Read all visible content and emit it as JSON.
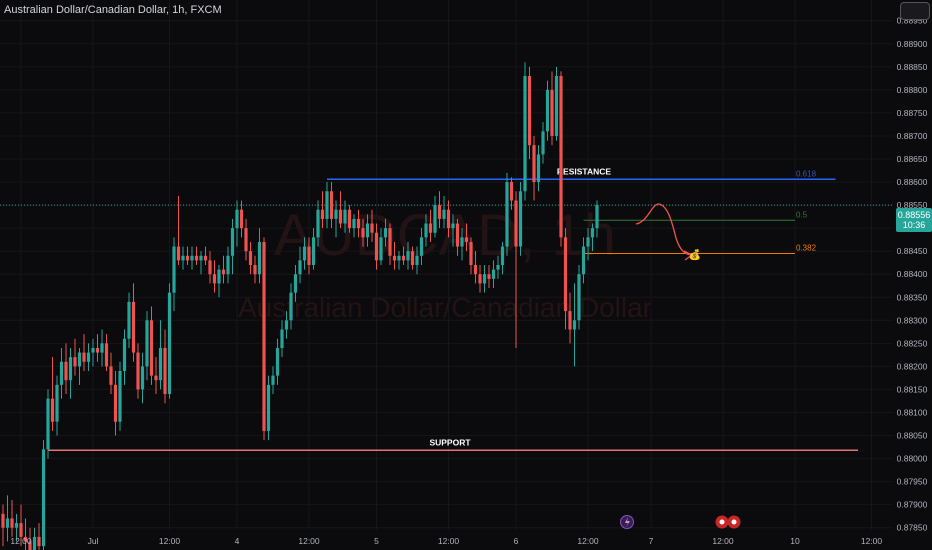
{
  "header": {
    "title": "Australian Dollar/Canadian Dollar, 1h, FXCM"
  },
  "watermark": {
    "symbol": "AUDCAD, 1h",
    "name": "Australian Dollar/Canadian Dollar"
  },
  "price_badge": {
    "price": "0.88556",
    "countdown": "10:36"
  },
  "colors": {
    "up": "#26a69a",
    "down": "#ef5350",
    "resistance": "#2962ff",
    "support": "#e57373",
    "fib618": "#3f51b5",
    "fib05": "#2e7d32",
    "fib0382": "#f57c00",
    "background": "#0b0b0d",
    "axis_text": "#b2b5be"
  },
  "chart_data": {
    "type": "candlestick",
    "title": "Australian Dollar/Canadian Dollar, 1h, FXCM",
    "ylim": [
      0.87845,
      0.88995
    ],
    "y_ticks": [
      "0.88950",
      "0.88900",
      "0.88850",
      "0.88800",
      "0.88750",
      "0.88700",
      "0.88650",
      "0.88600",
      "0.88550",
      "0.88500",
      "0.88450",
      "0.88400",
      "0.88350",
      "0.88300",
      "0.88250",
      "0.88200",
      "0.88150",
      "0.88100",
      "0.88050",
      "0.88000",
      "0.87950",
      "0.87900",
      "0.87850"
    ],
    "x_ticks": [
      "12:00",
      "Jul",
      "12:00",
      "4",
      "12:00",
      "5",
      "12:00",
      "6",
      "12:00",
      "7",
      "12:00",
      "10",
      "12:00"
    ],
    "x_tick_index": [
      4,
      20,
      37,
      52,
      68,
      83,
      99,
      114,
      130,
      144,
      160,
      176,
      193
    ],
    "annotations": {
      "resistance": {
        "label": "RESISTANCE",
        "price": 0.88606
      },
      "support": {
        "label": "SUPPORT",
        "price": 0.88018
      },
      "fib": [
        {
          "label": "0.618",
          "price": 0.88606
        },
        {
          "label": "0.5",
          "price": 0.88517
        },
        {
          "label": "0.382",
          "price": 0.88445
        }
      ],
      "money_bag": "💰"
    },
    "candles": [
      [
        0.8788,
        0.879,
        0.8781,
        0.8785
      ],
      [
        0.8785,
        0.8792,
        0.8782,
        0.8787
      ],
      [
        0.8787,
        0.8791,
        0.8783,
        0.8785
      ],
      [
        0.8785,
        0.8788,
        0.8782,
        0.8786
      ],
      [
        0.8786,
        0.879,
        0.8781,
        0.8783
      ],
      [
        0.8783,
        0.8787,
        0.8779,
        0.8782
      ],
      [
        0.8782,
        0.8785,
        0.8778,
        0.878
      ],
      [
        0.878,
        0.8785,
        0.8776,
        0.8783
      ],
      [
        0.8783,
        0.8786,
        0.8779,
        0.8781
      ],
      [
        0.8781,
        0.8804,
        0.878,
        0.8802
      ],
      [
        0.8802,
        0.8815,
        0.88,
        0.8813
      ],
      [
        0.8813,
        0.8822,
        0.8806,
        0.8808
      ],
      [
        0.8808,
        0.8818,
        0.8805,
        0.8816
      ],
      [
        0.8816,
        0.8824,
        0.8813,
        0.8821
      ],
      [
        0.8821,
        0.8825,
        0.8814,
        0.8817
      ],
      [
        0.8817,
        0.8824,
        0.8813,
        0.8822
      ],
      [
        0.8822,
        0.8826,
        0.8818,
        0.882
      ],
      [
        0.882,
        0.8824,
        0.8816,
        0.8823
      ],
      [
        0.8823,
        0.8827,
        0.8819,
        0.8821
      ],
      [
        0.8821,
        0.8825,
        0.8819,
        0.8823
      ],
      [
        0.8823,
        0.8826,
        0.882,
        0.8824
      ],
      [
        0.8824,
        0.8827,
        0.8821,
        0.8823
      ],
      [
        0.8823,
        0.8828,
        0.882,
        0.8825
      ],
      [
        0.8825,
        0.8827,
        0.8819,
        0.882
      ],
      [
        0.882,
        0.8823,
        0.8814,
        0.8816
      ],
      [
        0.8816,
        0.8819,
        0.8805,
        0.8808
      ],
      [
        0.8808,
        0.8821,
        0.8806,
        0.8819
      ],
      [
        0.8819,
        0.8828,
        0.8816,
        0.8826
      ],
      [
        0.8826,
        0.8836,
        0.8824,
        0.8834
      ],
      [
        0.8834,
        0.8838,
        0.8821,
        0.8823
      ],
      [
        0.8823,
        0.8825,
        0.8813,
        0.8815
      ],
      [
        0.8815,
        0.8823,
        0.8812,
        0.882
      ],
      [
        0.882,
        0.8832,
        0.8817,
        0.883
      ],
      [
        0.883,
        0.8833,
        0.8816,
        0.8818
      ],
      [
        0.8818,
        0.8822,
        0.8814,
        0.8817
      ],
      [
        0.8817,
        0.883,
        0.8815,
        0.8824
      ],
      [
        0.8824,
        0.8828,
        0.8812,
        0.8814
      ],
      [
        0.8814,
        0.8838,
        0.8813,
        0.8836
      ],
      [
        0.8836,
        0.8848,
        0.8832,
        0.8846
      ],
      [
        0.8846,
        0.8857,
        0.8842,
        0.8843
      ],
      [
        0.8843,
        0.8846,
        0.8841,
        0.8844
      ],
      [
        0.8844,
        0.8846,
        0.8842,
        0.8843
      ],
      [
        0.8843,
        0.8846,
        0.8841,
        0.8844
      ],
      [
        0.8844,
        0.8846,
        0.8842,
        0.8843
      ],
      [
        0.8843,
        0.8845,
        0.884,
        0.8844
      ],
      [
        0.8844,
        0.8846,
        0.8842,
        0.8843
      ],
      [
        0.8843,
        0.8845,
        0.8838,
        0.884
      ],
      [
        0.884,
        0.8843,
        0.8836,
        0.8838
      ],
      [
        0.8838,
        0.8842,
        0.8835,
        0.8841
      ],
      [
        0.8841,
        0.8844,
        0.8838,
        0.884
      ],
      [
        0.884,
        0.8846,
        0.8838,
        0.8844
      ],
      [
        0.8844,
        0.8852,
        0.884,
        0.885
      ],
      [
        0.885,
        0.8856,
        0.8846,
        0.8854
      ],
      [
        0.8854,
        0.8856,
        0.8848,
        0.885
      ],
      [
        0.885,
        0.8852,
        0.8843,
        0.8845
      ],
      [
        0.8845,
        0.8847,
        0.884,
        0.8842
      ],
      [
        0.8842,
        0.8844,
        0.8838,
        0.884
      ],
      [
        0.884,
        0.885,
        0.8838,
        0.8847
      ],
      [
        0.8847,
        0.8848,
        0.8804,
        0.8806
      ],
      [
        0.8806,
        0.8818,
        0.8804,
        0.8816
      ],
      [
        0.8816,
        0.882,
        0.8814,
        0.8818
      ],
      [
        0.8818,
        0.8826,
        0.8816,
        0.8824
      ],
      [
        0.8824,
        0.883,
        0.8822,
        0.8828
      ],
      [
        0.8828,
        0.8832,
        0.8826,
        0.883
      ],
      [
        0.883,
        0.8838,
        0.8828,
        0.8836
      ],
      [
        0.8836,
        0.8842,
        0.8834,
        0.884
      ],
      [
        0.884,
        0.8846,
        0.8838,
        0.8843
      ],
      [
        0.8843,
        0.8848,
        0.8841,
        0.8846
      ],
      [
        0.8846,
        0.8848,
        0.884,
        0.8842
      ],
      [
        0.8842,
        0.885,
        0.8841,
        0.8848
      ],
      [
        0.8848,
        0.8856,
        0.8846,
        0.8854
      ],
      [
        0.8854,
        0.8858,
        0.885,
        0.8852
      ],
      [
        0.8852,
        0.886,
        0.885,
        0.8858
      ],
      [
        0.8858,
        0.886,
        0.885,
        0.8852
      ],
      [
        0.8852,
        0.8856,
        0.8848,
        0.8854
      ],
      [
        0.8854,
        0.8858,
        0.885,
        0.8851
      ],
      [
        0.8851,
        0.8856,
        0.8849,
        0.8854
      ],
      [
        0.8854,
        0.8855,
        0.8849,
        0.885
      ],
      [
        0.885,
        0.8853,
        0.8848,
        0.8852
      ],
      [
        0.8852,
        0.8854,
        0.8848,
        0.885
      ],
      [
        0.885,
        0.8852,
        0.8846,
        0.8848
      ],
      [
        0.8848,
        0.8853,
        0.8846,
        0.8851
      ],
      [
        0.8851,
        0.8854,
        0.8847,
        0.8849
      ],
      [
        0.8849,
        0.8851,
        0.8841,
        0.8843
      ],
      [
        0.8843,
        0.885,
        0.8842,
        0.8848
      ],
      [
        0.8848,
        0.8852,
        0.8846,
        0.885
      ],
      [
        0.885,
        0.8851,
        0.8842,
        0.8844
      ],
      [
        0.8844,
        0.8847,
        0.8841,
        0.8843
      ],
      [
        0.8843,
        0.8845,
        0.8841,
        0.8844
      ],
      [
        0.8844,
        0.8846,
        0.8842,
        0.8843
      ],
      [
        0.8843,
        0.8847,
        0.8841,
        0.8845
      ],
      [
        0.8845,
        0.8846,
        0.8841,
        0.8842
      ],
      [
        0.8842,
        0.8846,
        0.884,
        0.8844
      ],
      [
        0.8844,
        0.885,
        0.8842,
        0.8848
      ],
      [
        0.8848,
        0.8853,
        0.8846,
        0.8851
      ],
      [
        0.8851,
        0.8854,
        0.8847,
        0.8849
      ],
      [
        0.8849,
        0.8857,
        0.8848,
        0.8855
      ],
      [
        0.8855,
        0.8858,
        0.885,
        0.8852
      ],
      [
        0.8852,
        0.8857,
        0.885,
        0.8854
      ],
      [
        0.8854,
        0.8856,
        0.8848,
        0.885
      ],
      [
        0.885,
        0.8853,
        0.8846,
        0.8851
      ],
      [
        0.8851,
        0.8852,
        0.8844,
        0.8846
      ],
      [
        0.8846,
        0.885,
        0.8843,
        0.8848
      ],
      [
        0.8848,
        0.8851,
        0.8845,
        0.8847
      ],
      [
        0.8847,
        0.8848,
        0.884,
        0.8842
      ],
      [
        0.8842,
        0.8845,
        0.8838,
        0.884
      ],
      [
        0.884,
        0.8842,
        0.8836,
        0.8838
      ],
      [
        0.8838,
        0.8842,
        0.8836,
        0.884
      ],
      [
        0.884,
        0.8842,
        0.8837,
        0.8839
      ],
      [
        0.8839,
        0.8843,
        0.8837,
        0.8841
      ],
      [
        0.8841,
        0.8844,
        0.8839,
        0.8842
      ],
      [
        0.8842,
        0.8847,
        0.884,
        0.8846
      ],
      [
        0.8846,
        0.8862,
        0.8844,
        0.886
      ],
      [
        0.886,
        0.8861,
        0.8854,
        0.8856
      ],
      [
        0.8856,
        0.8858,
        0.8824,
        0.8846
      ],
      [
        0.8846,
        0.886,
        0.8844,
        0.8858
      ],
      [
        0.8858,
        0.8886,
        0.8856,
        0.8883
      ],
      [
        0.8883,
        0.8885,
        0.8865,
        0.8868
      ],
      [
        0.8868,
        0.887,
        0.8856,
        0.886
      ],
      [
        0.886,
        0.8868,
        0.8858,
        0.8866
      ],
      [
        0.8866,
        0.8873,
        0.8864,
        0.8871
      ],
      [
        0.8871,
        0.8882,
        0.8869,
        0.888
      ],
      [
        0.888,
        0.8884,
        0.8868,
        0.887
      ],
      [
        0.887,
        0.8885,
        0.8869,
        0.8883
      ],
      [
        0.8883,
        0.8884,
        0.8846,
        0.8848
      ],
      [
        0.8848,
        0.885,
        0.8828,
        0.8832
      ],
      [
        0.8832,
        0.8836,
        0.8825,
        0.8828
      ],
      [
        0.8828,
        0.8838,
        0.882,
        0.883
      ],
      [
        0.883,
        0.8842,
        0.8828,
        0.884
      ],
      [
        0.884,
        0.8848,
        0.8838,
        0.8846
      ],
      [
        0.8846,
        0.885,
        0.8843,
        0.8848
      ],
      [
        0.8848,
        0.8851,
        0.8845,
        0.885
      ],
      [
        0.885,
        0.8856,
        0.8848,
        0.8855
      ]
    ]
  }
}
